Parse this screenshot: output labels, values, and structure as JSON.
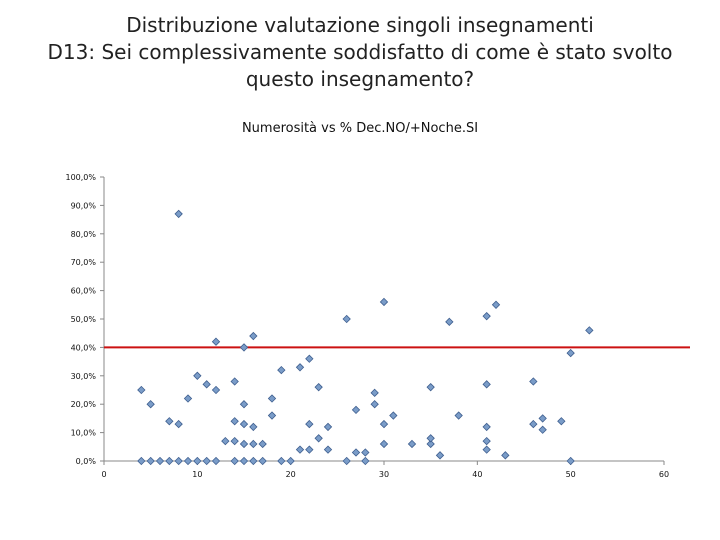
{
  "title": {
    "line1": "Distribuzione valutazione singoli insegnamenti",
    "line2": "D13: Sei complessivamente soddisfatto di come è stato svolto",
    "line3": "questo insegnamento?"
  },
  "chart_data": {
    "type": "scatter",
    "subtitle": "Numerosità vs %  Dec.NO/+Noche.SI",
    "xlim": [
      0,
      60
    ],
    "ylim": [
      0,
      100
    ],
    "x_ticks": [
      "0",
      "10",
      "20",
      "30",
      "40",
      "50",
      "60"
    ],
    "y_ticks": [
      "0,0%",
      "10,0%",
      "20,0%",
      "30,0%",
      "40,0%",
      "50,0%",
      "60,0%",
      "70,0%",
      "80,0%",
      "90,0%",
      "100,0%"
    ],
    "reference_line": {
      "y": 40,
      "color": "#cc1111"
    },
    "marker_color": "#7a9cc8",
    "grid": false,
    "points": [
      [
        4,
        0
      ],
      [
        5,
        0
      ],
      [
        6,
        0
      ],
      [
        7,
        0
      ],
      [
        8,
        0
      ],
      [
        9,
        0
      ],
      [
        10,
        0
      ],
      [
        11,
        0
      ],
      [
        12,
        0
      ],
      [
        14,
        0
      ],
      [
        15,
        0
      ],
      [
        16,
        0
      ],
      [
        17,
        0
      ],
      [
        19,
        0
      ],
      [
        20,
        0
      ],
      [
        26,
        0
      ],
      [
        28,
        0
      ],
      [
        50,
        0
      ],
      [
        8,
        87
      ],
      [
        4,
        25
      ],
      [
        5,
        20
      ],
      [
        7,
        14
      ],
      [
        8,
        13
      ],
      [
        9,
        22
      ],
      [
        10,
        30
      ],
      [
        11,
        27
      ],
      [
        12,
        25
      ],
      [
        12,
        42
      ],
      [
        13,
        7
      ],
      [
        14,
        7
      ],
      [
        14,
        14
      ],
      [
        14,
        28
      ],
      [
        15,
        6
      ],
      [
        15,
        13
      ],
      [
        15,
        20
      ],
      [
        15,
        40
      ],
      [
        16,
        6
      ],
      [
        16,
        12
      ],
      [
        16,
        44
      ],
      [
        17,
        6
      ],
      [
        18,
        16
      ],
      [
        18,
        22
      ],
      [
        19,
        32
      ],
      [
        21,
        4
      ],
      [
        21,
        33
      ],
      [
        22,
        4
      ],
      [
        22,
        13
      ],
      [
        22,
        36
      ],
      [
        23,
        8
      ],
      [
        23,
        26
      ],
      [
        24,
        4
      ],
      [
        24,
        12
      ],
      [
        26,
        50
      ],
      [
        27,
        3
      ],
      [
        27,
        18
      ],
      [
        28,
        3
      ],
      [
        29,
        20
      ],
      [
        29,
        24
      ],
      [
        30,
        6
      ],
      [
        30,
        13
      ],
      [
        30,
        56
      ],
      [
        31,
        16
      ],
      [
        33,
        6
      ],
      [
        35,
        6
      ],
      [
        35,
        8
      ],
      [
        35,
        26
      ],
      [
        36,
        2
      ],
      [
        37,
        49
      ],
      [
        38,
        16
      ],
      [
        41,
        4
      ],
      [
        41,
        7
      ],
      [
        41,
        12
      ],
      [
        41,
        27
      ],
      [
        41,
        51
      ],
      [
        42,
        55
      ],
      [
        43,
        2
      ],
      [
        46,
        13
      ],
      [
        46,
        28
      ],
      [
        47,
        11
      ],
      [
        47,
        15
      ],
      [
        49,
        14
      ],
      [
        50,
        38
      ],
      [
        52,
        46
      ]
    ]
  }
}
